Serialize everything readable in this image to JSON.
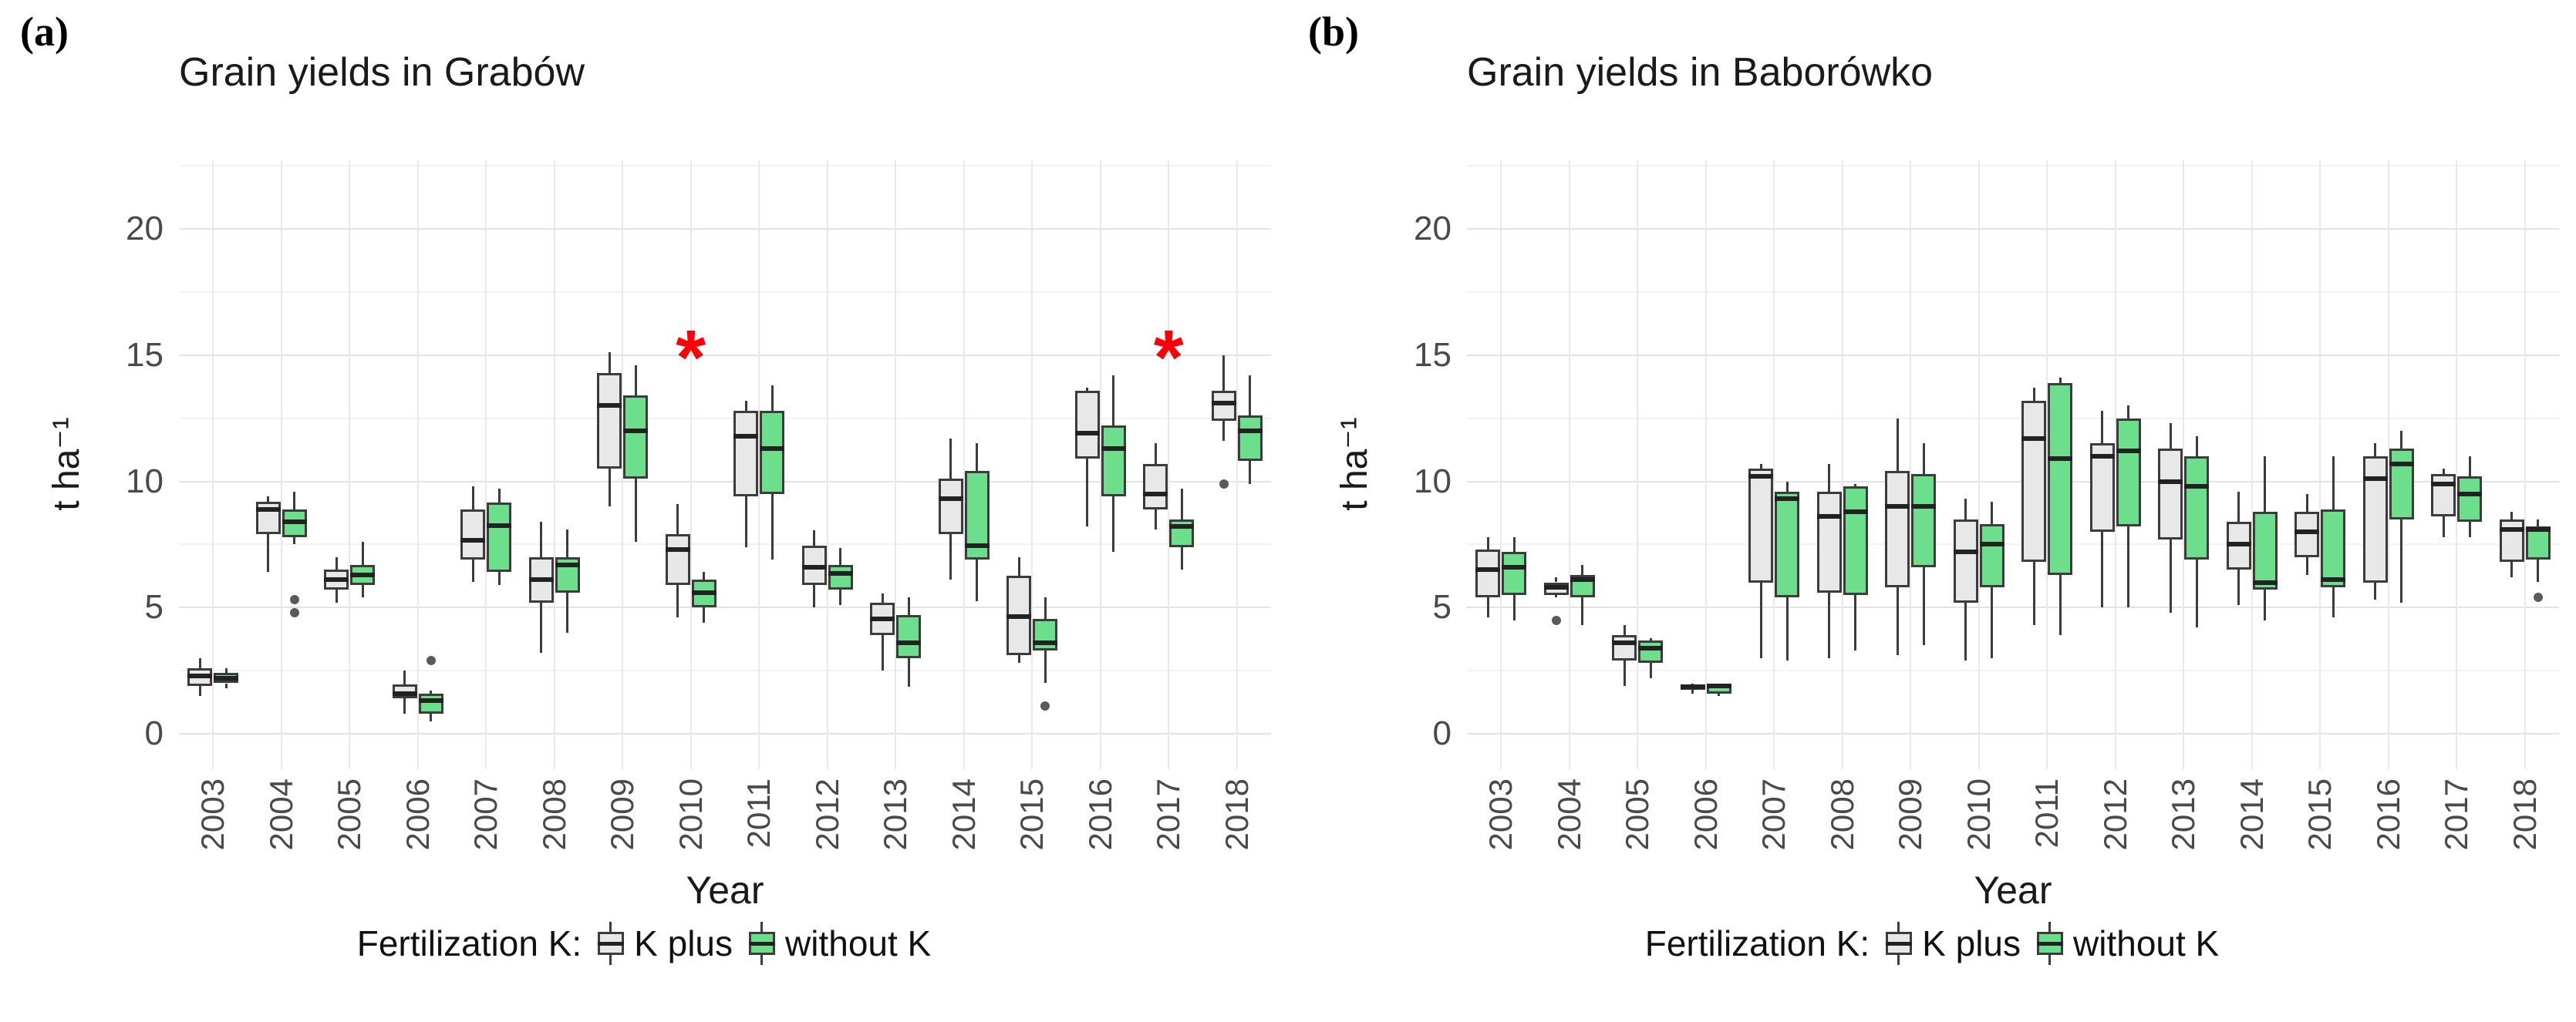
{
  "colors": {
    "k_plus_fill": "#e8e8e8",
    "without_k_fill": "#6cde8c",
    "box_border": "#3c3c3c",
    "median": "#222222",
    "outlier": "#5a5a5a",
    "star": "#fb0006",
    "axis_text": "#4a4a4a"
  },
  "legend": {
    "title": "Fertilization K:",
    "items": [
      {
        "label": "K plus",
        "color_key": "k_plus_fill"
      },
      {
        "label": "without K",
        "color_key": "without_k_fill"
      }
    ]
  },
  "chart_data": [
    {
      "type": "boxplot",
      "tag": "(a)",
      "title": "Grain yields in Grabów",
      "xlabel": "Year",
      "ylabel": "t ha⁻¹",
      "ylim": [
        -1.4,
        22.7
      ],
      "yticks": [
        0,
        5,
        10,
        15,
        20
      ],
      "yticks_minor": [
        2.5,
        7.5,
        12.5,
        17.5,
        22.5
      ],
      "grid": true,
      "legend_position": "bottom",
      "categories": [
        "2003",
        "2004",
        "2005",
        "2006",
        "2007",
        "2008",
        "2009",
        "2010",
        "2011",
        "2012",
        "2013",
        "2014",
        "2015",
        "2016",
        "2017",
        "2018"
      ],
      "significance": [
        {
          "category": "2010",
          "symbol": "*",
          "y": 15.3
        },
        {
          "category": "2017",
          "symbol": "*",
          "y": 15.3
        }
      ],
      "series": [
        {
          "name": "K plus",
          "color_key": "k_plus_fill",
          "stats": [
            [
              1.5,
              1.9,
              2.3,
              2.6,
              3.0
            ],
            [
              6.4,
              7.9,
              8.9,
              9.2,
              9.4
            ],
            [
              5.2,
              5.7,
              6.1,
              6.5,
              7.0
            ],
            [
              0.8,
              1.4,
              1.6,
              1.95,
              2.5
            ],
            [
              6.0,
              6.9,
              7.65,
              8.9,
              9.8
            ],
            [
              3.2,
              5.2,
              6.1,
              7.0,
              8.4
            ],
            [
              9.0,
              10.5,
              13.0,
              14.3,
              15.1
            ],
            [
              4.6,
              5.9,
              7.3,
              7.9,
              9.1
            ],
            [
              7.4,
              9.4,
              11.8,
              12.8,
              13.2
            ],
            [
              5.0,
              5.9,
              6.6,
              7.45,
              8.05
            ],
            [
              2.5,
              3.9,
              4.55,
              5.2,
              5.55
            ],
            [
              6.1,
              7.9,
              9.3,
              10.1,
              11.7
            ],
            [
              2.8,
              3.1,
              4.65,
              6.25,
              7.0
            ],
            [
              8.2,
              10.9,
              11.9,
              13.6,
              13.7
            ],
            [
              8.1,
              8.9,
              9.5,
              10.7,
              11.5
            ],
            [
              11.6,
              12.4,
              13.1,
              13.6,
              15.0
            ]
          ],
          "outliers": [
            [],
            [],
            [],
            [],
            [],
            [],
            [],
            [],
            [],
            [],
            [],
            [],
            [],
            [],
            [],
            [
              9.9
            ]
          ]
        },
        {
          "name": "without K",
          "color_key": "without_k_fill",
          "stats": [
            [
              1.8,
              2.0,
              2.2,
              2.4,
              2.6
            ],
            [
              7.5,
              7.8,
              8.4,
              8.9,
              9.6
            ],
            [
              5.4,
              5.9,
              6.3,
              6.7,
              7.6
            ],
            [
              0.5,
              0.8,
              1.3,
              1.6,
              1.7
            ],
            [
              5.9,
              6.4,
              8.25,
              9.15,
              9.7
            ],
            [
              4.0,
              5.6,
              6.7,
              7.0,
              8.1
            ],
            [
              7.6,
              10.1,
              12.0,
              13.4,
              14.6
            ],
            [
              4.4,
              5.0,
              5.6,
              6.1,
              6.4
            ],
            [
              6.9,
              9.5,
              11.3,
              12.8,
              13.8
            ],
            [
              5.1,
              5.7,
              6.35,
              6.7,
              7.35
            ],
            [
              1.85,
              3.0,
              3.6,
              4.7,
              5.4
            ],
            [
              5.25,
              6.9,
              7.45,
              10.4,
              11.5
            ],
            [
              2.0,
              3.3,
              3.6,
              4.55,
              5.4
            ],
            [
              7.2,
              9.4,
              11.3,
              12.2,
              14.2
            ],
            [
              6.5,
              7.4,
              8.2,
              8.5,
              9.7
            ],
            [
              9.9,
              10.8,
              12.0,
              12.6,
              14.2
            ]
          ],
          "outliers": [
            [],
            [
              5.3,
              4.8
            ],
            [],
            [
              2.9
            ],
            [],
            [],
            [],
            [],
            [],
            [],
            [],
            [],
            [
              1.1
            ],
            [],
            [],
            []
          ]
        }
      ]
    },
    {
      "type": "boxplot",
      "tag": "(b)",
      "title": "Grain yields in Baborówko",
      "xlabel": "Year",
      "ylabel": "t ha⁻¹",
      "ylim": [
        -1.4,
        22.7
      ],
      "yticks": [
        0,
        5,
        10,
        15,
        20
      ],
      "yticks_minor": [
        2.5,
        7.5,
        12.5,
        17.5,
        22.5
      ],
      "grid": true,
      "legend_position": "bottom",
      "categories": [
        "2003",
        "2004",
        "2005",
        "2006",
        "2007",
        "2008",
        "2009",
        "2010",
        "2011",
        "2012",
        "2013",
        "2014",
        "2015",
        "2016",
        "2017",
        "2018"
      ],
      "significance": [],
      "series": [
        {
          "name": "K plus",
          "color_key": "k_plus_fill",
          "stats": [
            [
              4.6,
              5.4,
              6.5,
              7.3,
              7.8
            ],
            [
              5.4,
              5.5,
              5.8,
              6.0,
              6.2
            ],
            [
              1.9,
              2.9,
              3.6,
              3.9,
              4.3
            ],
            [
              1.6,
              1.75,
              1.85,
              1.95,
              2.0
            ],
            [
              3.0,
              6.0,
              10.2,
              10.5,
              10.7
            ],
            [
              3.0,
              5.6,
              8.6,
              9.6,
              10.7
            ],
            [
              3.1,
              5.8,
              9.0,
              10.4,
              12.5
            ],
            [
              2.9,
              5.2,
              7.2,
              8.5,
              9.3
            ],
            [
              4.3,
              6.8,
              11.7,
              13.2,
              13.7
            ],
            [
              5.0,
              8.0,
              11.0,
              11.5,
              12.8
            ],
            [
              4.8,
              7.7,
              10.0,
              11.3,
              12.3
            ],
            [
              5.1,
              6.5,
              7.5,
              8.4,
              9.6
            ],
            [
              6.3,
              7.0,
              8.0,
              8.8,
              9.5
            ],
            [
              5.3,
              6.0,
              10.1,
              11.0,
              11.5
            ],
            [
              7.8,
              8.6,
              9.9,
              10.3,
              10.5
            ],
            [
              6.2,
              6.8,
              8.1,
              8.5,
              8.8
            ]
          ],
          "outliers": [
            [],
            [
              4.5
            ],
            [],
            [],
            [],
            [],
            [],
            [],
            [],
            [],
            [],
            [],
            [],
            [],
            [],
            []
          ]
        },
        {
          "name": "without K",
          "color_key": "without_k_fill",
          "stats": [
            [
              4.5,
              5.5,
              6.6,
              7.2,
              7.8
            ],
            [
              4.3,
              5.4,
              6.1,
              6.3,
              6.7
            ],
            [
              2.2,
              2.8,
              3.4,
              3.7,
              3.8
            ],
            [
              1.5,
              1.6,
              1.9,
              1.95,
              2.0
            ],
            [
              2.9,
              5.4,
              9.3,
              9.6,
              10.0
            ],
            [
              3.3,
              5.5,
              8.8,
              9.8,
              9.9
            ],
            [
              3.5,
              6.6,
              9.0,
              10.3,
              11.5
            ],
            [
              3.0,
              5.8,
              7.5,
              8.3,
              9.2
            ],
            [
              3.9,
              6.3,
              10.9,
              13.9,
              14.1
            ],
            [
              5.0,
              8.2,
              11.2,
              12.5,
              13.0
            ],
            [
              4.2,
              6.9,
              9.8,
              11.0,
              11.8
            ],
            [
              4.5,
              5.7,
              6.0,
              8.8,
              11.0
            ],
            [
              4.6,
              5.8,
              6.1,
              8.9,
              11.0
            ],
            [
              5.2,
              8.5,
              10.7,
              11.3,
              12.0
            ],
            [
              7.8,
              8.4,
              9.5,
              10.2,
              11.0
            ],
            [
              6.0,
              6.9,
              8.1,
              8.2,
              8.5
            ]
          ],
          "outliers": [
            [],
            [],
            [],
            [],
            [],
            [],
            [],
            [],
            [],
            [],
            [],
            [],
            [],
            [],
            [],
            [
              5.4
            ]
          ]
        }
      ]
    }
  ]
}
